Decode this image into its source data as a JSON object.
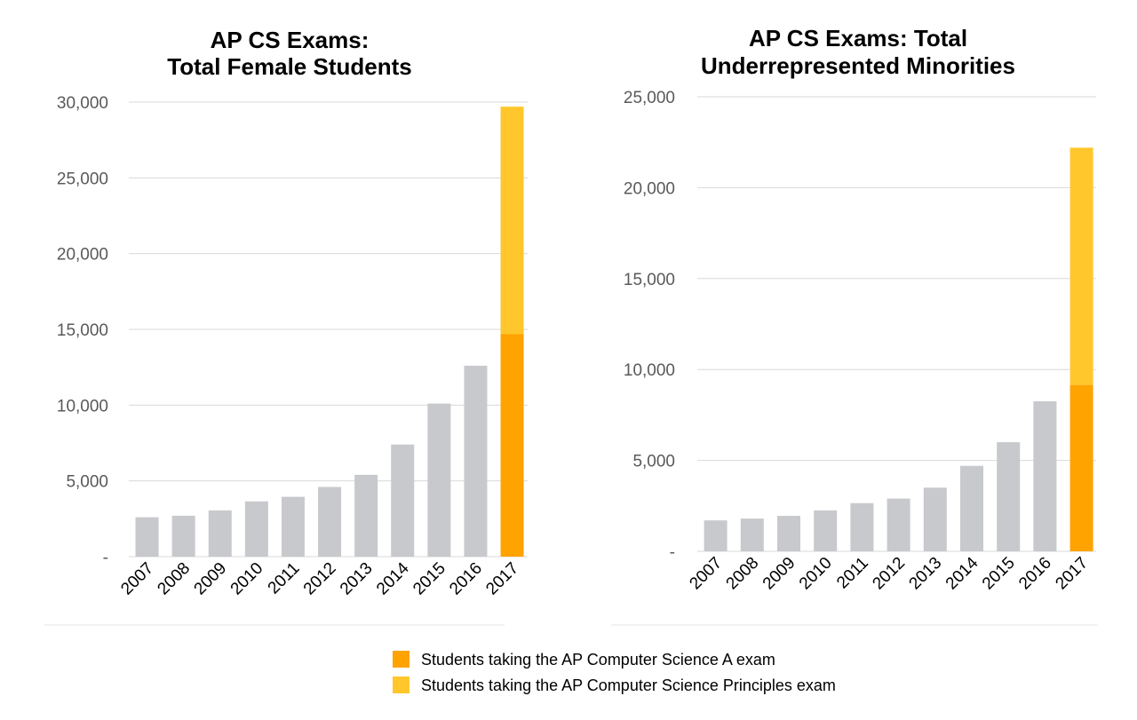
{
  "colors": {
    "historical": "#C7C9CC",
    "cs_a": "#FFA300",
    "cs_principles": "#FFC72C",
    "grid": "#D9D9D9"
  },
  "legend": {
    "items": [
      {
        "label": "Students taking the AP Computer Science A exam",
        "color": "#FFA300"
      },
      {
        "label": "Students taking the AP Computer Science Principles exam",
        "color": "#FFC72C"
      }
    ]
  },
  "chart_data": [
    {
      "type": "bar",
      "stacked": true,
      "title_lines": [
        "AP CS Exams:",
        "Total Female Students"
      ],
      "categories": [
        "2007",
        "2008",
        "2009",
        "2010",
        "2011",
        "2012",
        "2013",
        "2014",
        "2015",
        "2016",
        "2017"
      ],
      "series": [
        {
          "key": "historical",
          "values": [
            2600,
            2700,
            3050,
            3650,
            3950,
            4600,
            5400,
            7400,
            10100,
            12600,
            0
          ]
        },
        {
          "key": "cs_a",
          "name": "Students taking the AP Computer Science A exam",
          "values": [
            0,
            0,
            0,
            0,
            0,
            0,
            0,
            0,
            0,
            0,
            14700
          ]
        },
        {
          "key": "cs_principles",
          "name": "Students taking the AP Computer Science Principles exam",
          "values": [
            0,
            0,
            0,
            0,
            0,
            0,
            0,
            0,
            0,
            0,
            15000
          ]
        }
      ],
      "yticks": [
        0,
        5000,
        10000,
        15000,
        20000,
        25000,
        30000
      ],
      "ytick_labels": [
        "-",
        "5,000",
        "10,000",
        "15,000",
        "20,000",
        "25,000",
        "30,000"
      ],
      "ylim": [
        0,
        30000
      ],
      "grid": true
    },
    {
      "type": "bar",
      "stacked": true,
      "title_lines": [
        "AP CS Exams: Total",
        "Underrepresented Minorities"
      ],
      "categories": [
        "2007",
        "2008",
        "2009",
        "2010",
        "2011",
        "2012",
        "2013",
        "2014",
        "2015",
        "2016",
        "2017"
      ],
      "series": [
        {
          "key": "historical",
          "values": [
            1700,
            1800,
            1950,
            2250,
            2650,
            2900,
            3500,
            4700,
            6000,
            8250,
            0
          ]
        },
        {
          "key": "cs_a",
          "name": "Students taking the AP Computer Science A exam",
          "values": [
            0,
            0,
            0,
            0,
            0,
            0,
            0,
            0,
            0,
            0,
            9150
          ]
        },
        {
          "key": "cs_principles",
          "name": "Students taking the AP Computer Science Principles exam",
          "values": [
            0,
            0,
            0,
            0,
            0,
            0,
            0,
            0,
            0,
            0,
            13050
          ]
        }
      ],
      "yticks": [
        0,
        5000,
        10000,
        15000,
        20000,
        25000
      ],
      "ytick_labels": [
        "-",
        "5,000",
        "10,000",
        "15,000",
        "20,000",
        "25,000"
      ],
      "ylim": [
        0,
        25000
      ],
      "grid": true
    }
  ]
}
